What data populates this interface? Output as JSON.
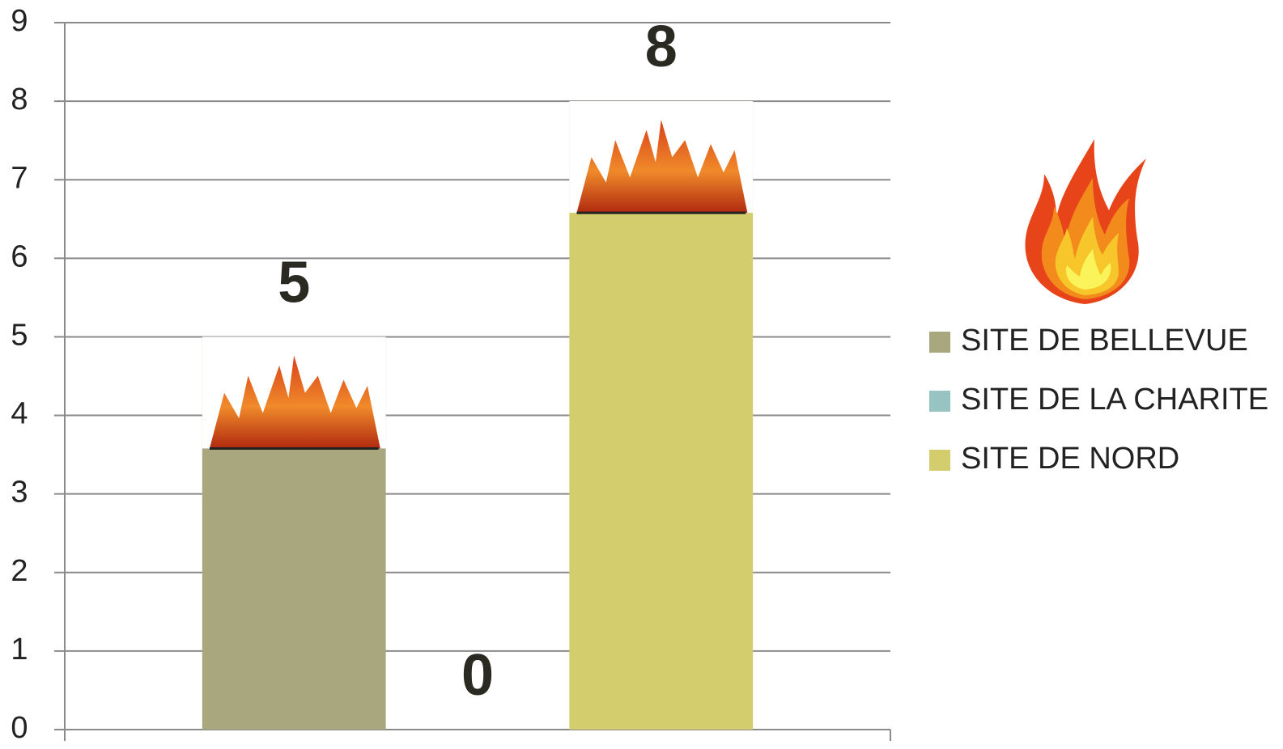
{
  "chart_data": {
    "type": "bar",
    "categories": [
      null
    ],
    "series": [
      {
        "name": "SITE DE BELLEVUE",
        "color": "#a9a77e",
        "values": [
          5
        ]
      },
      {
        "name": "SITE DE LA CHARITE",
        "color": "#97c4c2",
        "values": [
          0
        ]
      },
      {
        "name": "SITE DE NORD",
        "color": "#d3cd6e",
        "values": [
          8
        ]
      }
    ],
    "ylim": [
      0,
      9
    ],
    "yticks": [
      0,
      1,
      2,
      3,
      4,
      5,
      6,
      7,
      8,
      9
    ],
    "grid": true,
    "legend": "right"
  }
}
